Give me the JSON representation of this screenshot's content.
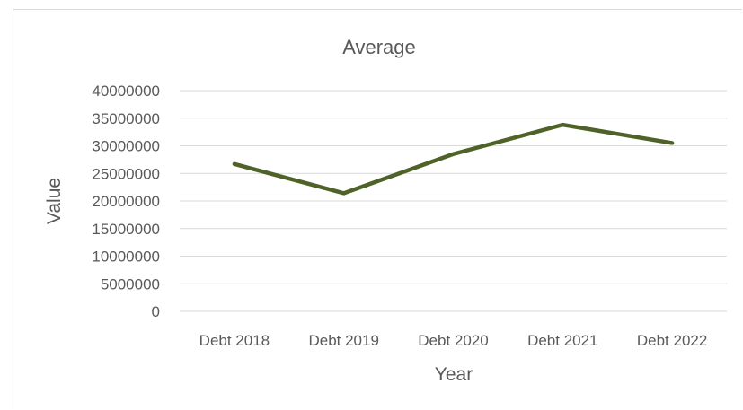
{
  "chart_data": {
    "type": "line",
    "title": "Average",
    "xlabel": "Year",
    "ylabel": "Value",
    "categories": [
      "Debt 2018",
      "Debt 2019",
      "Debt 2020",
      "Debt 2021",
      "Debt 2022"
    ],
    "series": [
      {
        "values": [
          26700000,
          21400000,
          28500000,
          33800000,
          30500000
        ]
      }
    ],
    "ylim": [
      0,
      40000000
    ],
    "yticks": [
      "0",
      "5000000",
      "10000000",
      "15000000",
      "20000000",
      "25000000",
      "30000000",
      "35000000",
      "40000000"
    ],
    "grid": true,
    "legend": "none",
    "colors": {
      "series": "#4f6228",
      "grid": "#d9d9d9",
      "text": "#595959"
    }
  }
}
